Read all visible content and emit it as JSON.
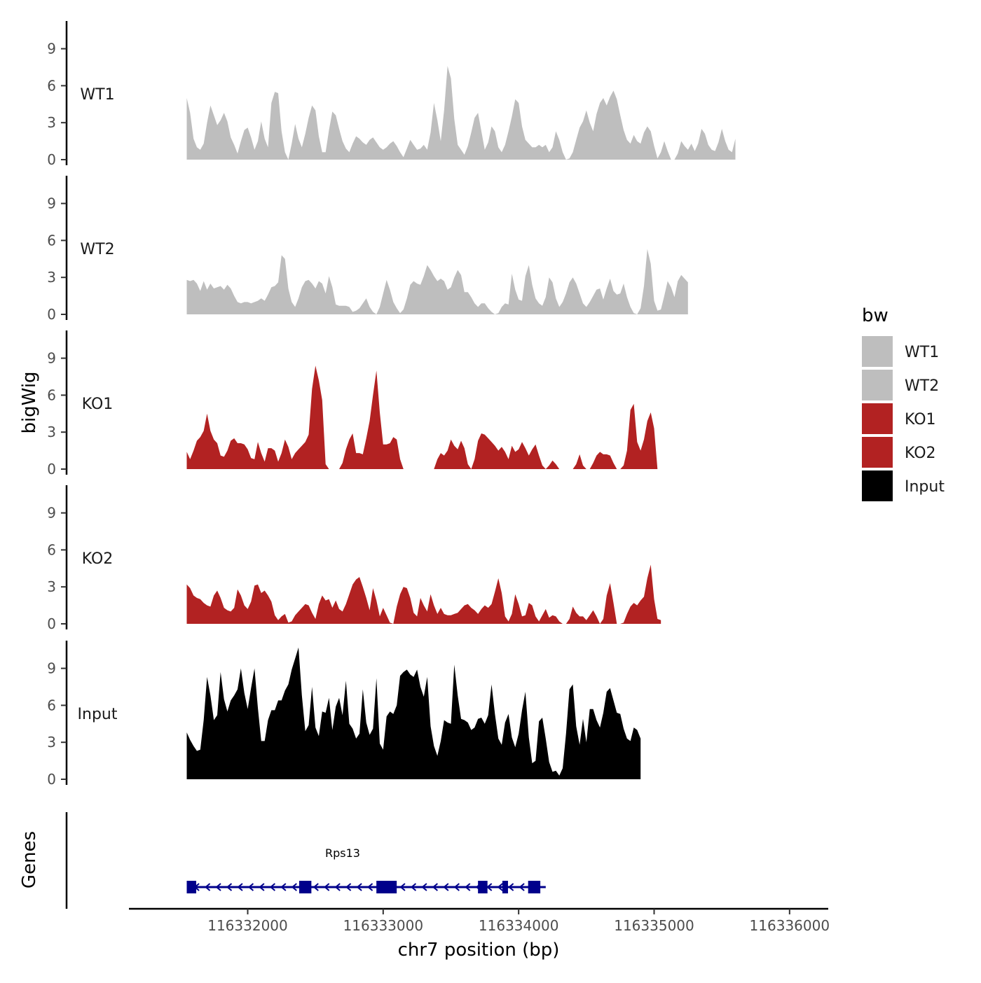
{
  "chart_data": {
    "type": "area",
    "title": "",
    "xlabel": "chr7 position (bp)",
    "ylabel": "bigWig",
    "genes_label": "Genes",
    "xlim": [
      116331400,
      116336400
    ],
    "ylim": [
      0,
      11
    ],
    "x_ticks": [
      {
        "value": 116332000,
        "label": "116332000"
      },
      {
        "value": 116333000,
        "label": "116333000"
      },
      {
        "value": 116334000,
        "label": "116334000"
      },
      {
        "value": 116335000,
        "label": "116335000"
      },
      {
        "value": 116336000,
        "label": "116336000"
      }
    ],
    "y_ticks": [
      {
        "value": 0,
        "label": "0"
      },
      {
        "value": 3,
        "label": "3"
      },
      {
        "value": 6,
        "label": "6"
      },
      {
        "value": 9,
        "label": "9"
      }
    ],
    "legend": {
      "title": "bw",
      "position": "right",
      "entries": [
        {
          "label": "WT1",
          "color": "#bebebe"
        },
        {
          "label": "WT2",
          "color": "#bebebe"
        },
        {
          "label": "KO1",
          "color": "#b22222"
        },
        {
          "label": "KO2",
          "color": "#b22222"
        },
        {
          "label": "Input",
          "color": "#000000"
        }
      ]
    },
    "x_start": 116331550,
    "x_step": 25,
    "series": [
      {
        "name": "WT1",
        "color": "#bebebe",
        "values": [
          5.0,
          3.8,
          1.7,
          1.0,
          0.8,
          1.3,
          3.0,
          4.4,
          3.6,
          2.8,
          3.2,
          3.8,
          3.1,
          1.8,
          1.2,
          0.5,
          1.5,
          2.4,
          2.6,
          1.8,
          0.8,
          1.5,
          3.1,
          1.7,
          1.0,
          4.6,
          5.5,
          5.4,
          2.3,
          0.6,
          0,
          1.3,
          2.9,
          1.7,
          1.0,
          2.1,
          3.4,
          4.4,
          4.0,
          1.9,
          0.6,
          0.6,
          2.4,
          3.9,
          3.6,
          2.5,
          1.5,
          0.9,
          0.6,
          1.3,
          1.9,
          1.7,
          1.4,
          1.2,
          1.6,
          1.8,
          1.4,
          1.0,
          0.8,
          1.0,
          1.3,
          1.5,
          1.1,
          0.6,
          0.2,
          0.9,
          1.6,
          1.2,
          0.8,
          0.9,
          1.2,
          0.8,
          2.2,
          4.6,
          3.2,
          1.5,
          4.0,
          7.6,
          6.6,
          3.3,
          1.2,
          0.8,
          0.4,
          1.1,
          2.2,
          3.4,
          3.8,
          2.3,
          0.8,
          1.4,
          2.7,
          2.3,
          1.0,
          0.6,
          1.2,
          2.3,
          3.5,
          4.9,
          4.6,
          2.7,
          1.6,
          1.3,
          1.0,
          1.0,
          1.2,
          1.0,
          1.2,
          0.6,
          1.0,
          2.3,
          1.6,
          0.6,
          0,
          0.1,
          0.6,
          1.6,
          2.6,
          3.1,
          4.0,
          3.0,
          2.3,
          3.7,
          4.6,
          5.0,
          4.4,
          5.1,
          5.6,
          4.9,
          3.6,
          2.4,
          1.6,
          1.3,
          2.0,
          1.5,
          1.3,
          2.2,
          2.7,
          2.3,
          1.1,
          0.1,
          0.6,
          1.5,
          0.7,
          0,
          0,
          0.5,
          1.5,
          1.1,
          0.8,
          1.3,
          0.7,
          1.3,
          2.5,
          2.1,
          1.2,
          0.8,
          0.7,
          1.4,
          2.5,
          1.5,
          0.8,
          0.6,
          1.7
        ]
      },
      {
        "name": "WT2",
        "color": "#bebebe",
        "values": [
          2.8,
          2.7,
          2.8,
          2.5,
          1.9,
          2.7,
          2.0,
          2.5,
          2.1,
          2.2,
          2.3,
          2.0,
          2.4,
          2.1,
          1.5,
          1.0,
          0.9,
          1.0,
          1.0,
          0.9,
          1.0,
          1.1,
          1.3,
          1.1,
          1.6,
          2.2,
          2.3,
          2.6,
          4.8,
          4.5,
          2.1,
          1.0,
          0.6,
          1.3,
          2.2,
          2.7,
          2.8,
          2.5,
          2.1,
          2.7,
          2.5,
          1.7,
          3.1,
          2.2,
          0.8,
          0.7,
          0.7,
          0.7,
          0.6,
          0.2,
          0.3,
          0.5,
          0.9,
          1.3,
          0.6,
          0.2,
          0,
          0.6,
          1.7,
          2.8,
          2.0,
          1.0,
          0.5,
          0.1,
          0.4,
          1.3,
          2.4,
          2.7,
          2.5,
          2.4,
          3.1,
          4.0,
          3.6,
          3.1,
          2.7,
          2.9,
          2.7,
          2.0,
          2.2,
          3.0,
          3.6,
          3.2,
          1.8,
          1.8,
          1.4,
          0.9,
          0.6,
          0.9,
          0.9,
          0.5,
          0.2,
          0,
          0.1,
          0.6,
          0.9,
          0.8,
          3.3,
          2.0,
          1.2,
          1.1,
          3.1,
          4.0,
          2.4,
          1.3,
          0.9,
          0.7,
          1.4,
          3.0,
          2.6,
          1.3,
          0.6,
          1.0,
          1.7,
          2.6,
          3.0,
          2.5,
          1.7,
          0.9,
          0.6,
          1.0,
          1.5,
          2.0,
          2.1,
          1.2,
          2.1,
          2.9,
          1.9,
          1.6,
          1.7,
          2.5,
          1.4,
          0.6,
          0.1,
          0,
          0.5,
          2.3,
          5.3,
          4.1,
          1.1,
          0.3,
          0.4,
          1.5,
          2.7,
          2.2,
          1.4,
          2.7,
          3.2,
          2.9,
          2.6
        ]
      },
      {
        "name": "KO1",
        "color": "#b22222",
        "values": [
          1.4,
          0.8,
          1.5,
          2.3,
          2.6,
          3.1,
          4.5,
          3.1,
          2.4,
          2.1,
          1.1,
          1.0,
          1.5,
          2.3,
          2.5,
          2.1,
          2.1,
          2.0,
          1.6,
          0.9,
          0.8,
          2.2,
          1.3,
          0.6,
          1.7,
          1.7,
          1.5,
          0.6,
          1.3,
          2.4,
          1.8,
          0.8,
          1.3,
          1.6,
          1.9,
          2.2,
          2.8,
          6.5,
          8.4,
          7.2,
          5.6,
          0.4,
          0,
          0,
          0,
          0,
          0.5,
          1.6,
          2.4,
          2.9,
          1.3,
          1.3,
          1.2,
          2.5,
          3.9,
          6.0,
          8.0,
          4.6,
          2.0,
          2.0,
          2.1,
          2.6,
          2.4,
          0.8,
          0,
          0,
          0,
          0,
          0,
          0,
          0,
          0,
          0,
          0,
          0.8,
          1.3,
          1.1,
          1.5,
          2.4,
          1.9,
          1.6,
          2.3,
          1.7,
          0.4,
          0,
          0.8,
          2.3,
          2.9,
          2.8,
          2.5,
          2.2,
          1.9,
          1.5,
          1.8,
          1.4,
          0.8,
          1.9,
          1.4,
          1.6,
          2.2,
          1.7,
          1.1,
          1.6,
          2.0,
          1.1,
          0.3,
          0,
          0.3,
          0.7,
          0.4,
          0,
          0,
          0,
          0,
          0,
          0.4,
          1.2,
          0.3,
          0,
          0,
          0.5,
          1.1,
          1.4,
          1.2,
          1.2,
          1.1,
          0.5,
          0,
          0,
          0.3,
          1.5,
          4.8,
          5.3,
          2.2,
          1.5,
          2.4,
          3.9,
          4.6,
          3.3,
          0
        ]
      },
      {
        "name": "KO2",
        "color": "#b22222",
        "values": [
          3.2,
          2.9,
          2.3,
          2.1,
          2.0,
          1.7,
          1.5,
          1.4,
          2.3,
          2.7,
          2.1,
          1.3,
          1.1,
          1.0,
          1.3,
          2.8,
          2.3,
          1.5,
          1.2,
          1.8,
          3.1,
          3.2,
          2.5,
          2.7,
          2.3,
          1.8,
          0.7,
          0.3,
          0.6,
          0.8,
          0.1,
          0.2,
          0.7,
          1.0,
          1.3,
          1.6,
          1.5,
          0.9,
          0.4,
          1.6,
          2.3,
          1.9,
          2.0,
          1.3,
          1.9,
          1.2,
          1.0,
          1.6,
          2.4,
          3.2,
          3.6,
          3.8,
          3.0,
          2.1,
          1.1,
          2.9,
          1.9,
          0.6,
          1.3,
          0.7,
          0.1,
          0,
          1.4,
          2.4,
          3.0,
          2.9,
          2.1,
          0.9,
          0.6,
          2.1,
          1.5,
          1.0,
          2.4,
          1.5,
          0.8,
          1.3,
          0.8,
          0.7,
          0.7,
          0.8,
          0.9,
          1.2,
          1.5,
          1.6,
          1.3,
          1.1,
          0.8,
          1.2,
          1.5,
          1.3,
          1.6,
          2.6,
          3.7,
          2.5,
          0.6,
          0.2,
          0.8,
          2.4,
          1.6,
          0.6,
          0.7,
          1.7,
          1.5,
          0.6,
          0.2,
          0.7,
          1.2,
          0.5,
          0.7,
          0.6,
          0.2,
          0,
          0,
          0.4,
          1.4,
          0.9,
          0.6,
          0.6,
          0.3,
          0.7,
          1.1,
          0.6,
          0,
          0.4,
          2.3,
          3.3,
          1.7,
          0,
          0,
          0.1,
          0.8,
          1.4,
          1.7,
          1.5,
          1.9,
          2.2,
          3.7,
          4.8,
          2.0,
          0.4,
          0.3
        ]
      },
      {
        "name": "Input",
        "color": "#000000",
        "values": [
          3.8,
          3.2,
          2.7,
          2.3,
          2.4,
          4.8,
          8.3,
          6.8,
          4.8,
          5.2,
          8.7,
          6.5,
          5.5,
          6.4,
          6.8,
          7.3,
          9.0,
          7.0,
          5.7,
          7.4,
          9.0,
          5.8,
          3.1,
          3.1,
          4.8,
          5.6,
          5.6,
          6.4,
          6.4,
          7.2,
          7.7,
          8.9,
          9.8,
          10.7,
          6.8,
          3.9,
          4.4,
          7.5,
          4.2,
          3.5,
          5.5,
          5.4,
          6.6,
          4.0,
          5.9,
          6.6,
          5.2,
          8.0,
          4.5,
          4.1,
          3.3,
          3.7,
          7.3,
          4.6,
          3.6,
          4.1,
          8.2,
          2.9,
          2.4,
          5.1,
          5.5,
          5.3,
          6.0,
          8.4,
          8.7,
          8.9,
          8.5,
          8.3,
          8.9,
          7.5,
          6.7,
          8.3,
          4.3,
          2.7,
          1.9,
          3.1,
          4.8,
          4.6,
          4.5,
          9.3,
          6.8,
          4.9,
          4.8,
          4.6,
          4.0,
          4.2,
          4.9,
          5.0,
          4.5,
          5.2,
          7.7,
          5.3,
          3.3,
          2.8,
          4.6,
          5.3,
          3.4,
          2.6,
          3.7,
          5.6,
          7.1,
          3.4,
          1.3,
          1.5,
          4.7,
          5.0,
          3.3,
          1.4,
          0.6,
          0.7,
          0.3,
          0.9,
          3.7,
          7.3,
          7.7,
          4.3,
          2.8,
          4.9,
          3.0,
          5.7,
          5.7,
          4.8,
          4.2,
          5.4,
          7.1,
          7.4,
          6.4,
          5.4,
          5.3,
          4.1,
          3.3,
          3.1,
          4.2,
          4.0,
          3.3
        ]
      }
    ],
    "gene_track": {
      "gene_name": "Rps13",
      "start": 116331550,
      "end": 116334200,
      "strand": "-",
      "color": "#00008b",
      "exons": [
        [
          116331550,
          116331620
        ],
        [
          116332380,
          116332470
        ],
        [
          116332950,
          116333100
        ],
        [
          116333700,
          116333770
        ],
        [
          116333880,
          116333920
        ],
        [
          116334070,
          116334160
        ]
      ]
    }
  }
}
